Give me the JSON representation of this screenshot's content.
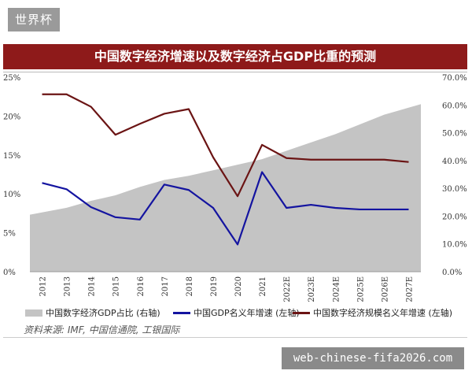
{
  "site_tag": "世界杯",
  "watermark": "web-chinese-fifa2026.com",
  "source": "资料来源:   IMF, 中国信通院, 工银国际",
  "chart_data": {
    "type": "line",
    "title": "中国数字经济增速以及数字经济占GDP比重的预测",
    "categories": [
      "2012",
      "2013",
      "2014",
      "2015",
      "2016",
      "2017",
      "2018",
      "2019",
      "2020",
      "2021",
      "2022E",
      "2023E",
      "2024E",
      "2025E",
      "2026E",
      "2027E"
    ],
    "y_left": {
      "ticks": [
        "0%",
        "5%",
        "10%",
        "15%",
        "20%",
        "25%"
      ],
      "ylim": [
        0,
        25
      ],
      "unit": "%"
    },
    "y_right": {
      "ticks": [
        "0.0%",
        "10.0%",
        "20.0%",
        "30.0%",
        "40.0%",
        "50.0%",
        "60.0%",
        "70.0%"
      ],
      "ylim": [
        0,
        70
      ],
      "unit": "%"
    },
    "series": [
      {
        "name": "中国数字经济GDP占比 (右轴)",
        "type": "area",
        "axis": "right",
        "color": "#c4c4c4",
        "values": [
          20.5,
          23,
          25.5,
          27.5,
          30.5,
          33,
          34.5,
          36.5,
          38.5,
          40.5,
          43.5,
          46.5,
          49.5,
          53,
          56.5,
          60.3
        ]
      },
      {
        "name": "中国GDP名义年增速 (左轴)",
        "type": "line",
        "axis": "left",
        "color": "#1414a0",
        "values": [
          11.4,
          10.6,
          8.3,
          7.0,
          6.7,
          11.2,
          10.5,
          8.2,
          3.5,
          12.8,
          8.2,
          8.6,
          8.2,
          8.0,
          8.0,
          8.0
        ]
      },
      {
        "name": "中国数字经济规模名义年增速 (左轴)",
        "type": "line",
        "axis": "left",
        "color": "#6b1414",
        "values": [
          22.8,
          22.8,
          21.2,
          17.6,
          19.0,
          20.3,
          20.9,
          14.7,
          9.7,
          16.3,
          14.6,
          14.4,
          14.4,
          14.4,
          14.4,
          14.1
        ]
      }
    ],
    "legend": [
      "中国数字经济GDP占比 (右轴)",
      "中国GDP名义年增速 (左轴)",
      "中国数字经济规模名义年增速 (左轴)"
    ],
    "legend_position": "bottom"
  }
}
